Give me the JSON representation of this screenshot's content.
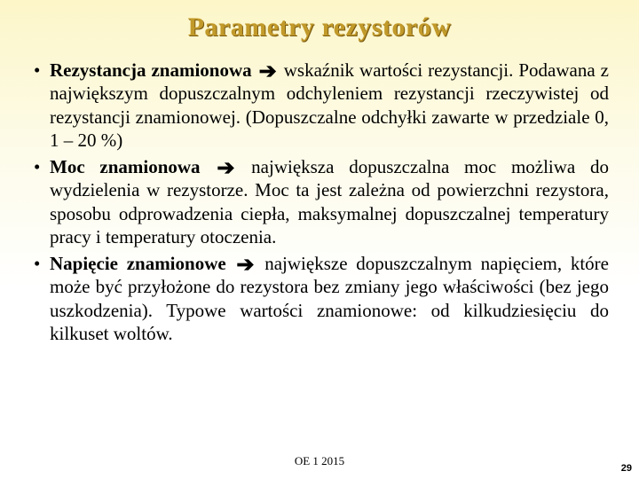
{
  "slide": {
    "title": "Parametry rezystorów",
    "background": {
      "gradient_top": "#fcf6c8",
      "gradient_mid": "#fdfbe8",
      "gradient_bottom": "#ffffff"
    },
    "title_style": {
      "color": "#c29a2a",
      "shadow": "#7a5a10",
      "fontsize_pt": 22,
      "weight": "bold"
    },
    "body_style": {
      "fontsize_pt": 16,
      "color": "#000000",
      "align": "justify",
      "font_family": "Times New Roman"
    },
    "arrow_glyph": "➔",
    "bullets": [
      {
        "lead": "Rezystancja znamionowa",
        "rest": " wskaźnik wartości rezystancji. Podawana z największym dopuszczalnym odchyleniem rezystancji rzeczywistej od rezystancji znamionowej. (Dopuszczalne odchyłki zawarte w przedziale 0, 1 – 20 %)"
      },
      {
        "lead": "Moc znamionowa",
        "rest": " największa dopuszczalna moc możliwa do wydzielenia w rezystorze. Moc ta jest zależna od powierzchni rezystora, sposobu odprowadzenia ciepła, maksymalnej dopuszczalnej temperatury pracy i temperatury otoczenia."
      },
      {
        "lead": "Napięcie znamionowe",
        "rest": " największe dopuszczalnym napięciem, które może być przyłożone do rezystora bez zmiany jego właściwości (bez jego uszkodzenia). Typowe wartości znamionowe: od kilkudziesięciu do kilkuset woltów."
      }
    ],
    "footer": "OE 1 2015",
    "page_number": "29"
  }
}
